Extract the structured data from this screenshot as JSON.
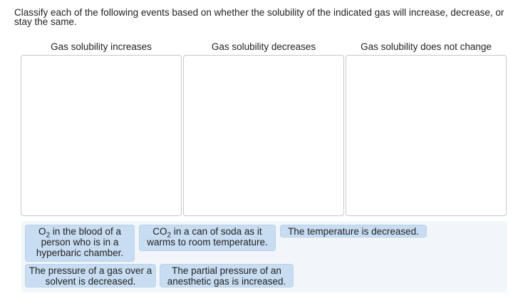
{
  "prompt": "Classify each of the following events based on whether the solubility of the indicated gas will increase, decrease, or stay the same.",
  "categories": [
    {
      "label": "Gas solubility increases"
    },
    {
      "label": "Gas solubility decreases"
    },
    {
      "label": "Gas solubility does not change"
    }
  ],
  "chips": [
    {
      "pre": "O",
      "sub": "2",
      "text": " in the blood of a person who is in a hyperbaric chamber."
    },
    {
      "pre": "CO",
      "sub": "2",
      "text": " in a can of soda as it warms to room temperature."
    },
    {
      "pre": "",
      "sub": "",
      "text": "The temperature is decreased."
    },
    {
      "pre": "",
      "sub": "",
      "text": "The pressure of a gas over a solvent is decreased."
    },
    {
      "pre": "",
      "sub": "",
      "text": "The partial pressure of an anesthetic gas is increased."
    }
  ],
  "colors": {
    "chip_bg": "#c8ddf2",
    "pool_bg": "#f2f6fb",
    "box_border": "#c8c8c8"
  }
}
